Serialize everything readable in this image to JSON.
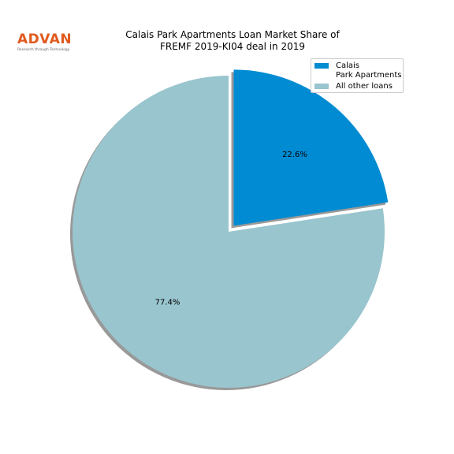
{
  "logo": {
    "word": "ADVAN",
    "tagline": "Research through Technology",
    "color": "#e05a1e"
  },
  "title": {
    "line1": "Calais Park Apartments Loan Market Share of",
    "line2": "FREMF 2019-KI04 deal in 2019"
  },
  "legend": {
    "entries": [
      {
        "label": "Calais\nPark Apartments",
        "color": "#008bd2"
      },
      {
        "label": "All other loans",
        "color": "#99c5ce"
      }
    ]
  },
  "chart_data": {
    "type": "pie",
    "title": "Calais Park Apartments Loan Market Share of FREMF 2019-KI04 deal in 2019",
    "categories": [
      "Calais\nPark Apartments",
      "All other loans"
    ],
    "values": [
      22.6,
      77.4
    ],
    "labels": [
      "22.6%",
      "77.4%"
    ],
    "colors": [
      "#008bd2",
      "#99c5ce"
    ],
    "exploded": [
      true,
      false
    ],
    "shadow": true,
    "start_angle_deg": 90,
    "direction": "clockwise",
    "legend_position": "top-right"
  }
}
